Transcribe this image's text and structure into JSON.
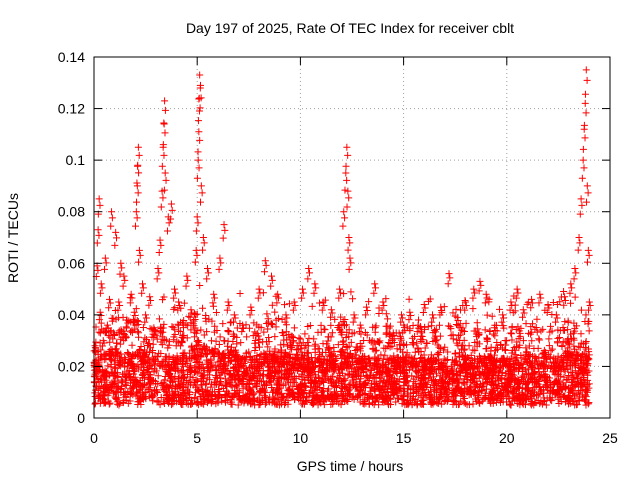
{
  "chart_data": {
    "type": "scatter",
    "title": "Day 197 of 2025, Rate Of TEC Index for receiver cblt",
    "xlabel": "GPS time / hours",
    "ylabel": "ROTI / TECUs",
    "xlim": [
      0,
      25
    ],
    "ylim": [
      0,
      0.14
    ],
    "xticks": [
      0,
      5,
      10,
      15,
      20,
      25
    ],
    "xtick_labels": [
      "0",
      "5",
      "10",
      "15",
      "20",
      "25"
    ],
    "yticks": [
      0,
      0.02,
      0.04,
      0.06,
      0.08,
      0.1,
      0.12,
      0.14
    ],
    "ytick_labels": [
      "0",
      "0.02",
      "0.04",
      "0.06",
      "0.08",
      "0.1",
      "0.12",
      "0.14"
    ],
    "grid": true,
    "marker": "+",
    "colors": {
      "points": "#ff0000",
      "grid": "#a0a0a0",
      "axes": "#000000"
    },
    "series": [
      {
        "name": "ROTI",
        "points": [
          [
            0.05,
            0.028
          ],
          [
            0.15,
            0.059
          ],
          [
            0.2,
            0.073
          ],
          [
            0.25,
            0.085
          ],
          [
            0.3,
            0.041
          ],
          [
            0.35,
            0.052
          ],
          [
            0.45,
            0.03
          ],
          [
            0.55,
            0.062
          ],
          [
            0.65,
            0.036
          ],
          [
            0.75,
            0.046
          ],
          [
            0.85,
            0.08
          ],
          [
            0.95,
            0.033
          ],
          [
            1.05,
            0.072
          ],
          [
            1.2,
            0.045
          ],
          [
            1.3,
            0.06
          ],
          [
            1.45,
            0.055
          ],
          [
            1.6,
            0.038
          ],
          [
            1.8,
            0.048
          ],
          [
            1.95,
            0.041
          ],
          [
            2.05,
            0.08
          ],
          [
            2.1,
            0.09
          ],
          [
            2.12,
            0.098
          ],
          [
            2.15,
            0.105
          ],
          [
            2.2,
            0.065
          ],
          [
            2.35,
            0.052
          ],
          [
            2.5,
            0.04
          ],
          [
            2.7,
            0.047
          ],
          [
            2.9,
            0.035
          ],
          [
            3.1,
            0.058
          ],
          [
            3.2,
            0.069
          ],
          [
            3.3,
            0.088
          ],
          [
            3.35,
            0.105
          ],
          [
            3.4,
            0.114
          ],
          [
            3.42,
            0.123
          ],
          [
            3.45,
            0.095
          ],
          [
            3.6,
            0.078
          ],
          [
            3.75,
            0.083
          ],
          [
            3.9,
            0.05
          ],
          [
            4.1,
            0.045
          ],
          [
            4.3,
            0.032
          ],
          [
            4.5,
            0.055
          ],
          [
            4.7,
            0.042
          ],
          [
            4.95,
            0.065
          ],
          [
            5.0,
            0.078
          ],
          [
            5.05,
            0.1
          ],
          [
            5.08,
            0.111
          ],
          [
            5.1,
            0.124
          ],
          [
            5.12,
            0.133
          ],
          [
            5.15,
            0.128
          ],
          [
            5.2,
            0.09
          ],
          [
            5.3,
            0.07
          ],
          [
            5.5,
            0.058
          ],
          [
            5.8,
            0.048
          ],
          [
            6.1,
            0.062
          ],
          [
            6.3,
            0.075
          ],
          [
            6.5,
            0.045
          ],
          [
            6.8,
            0.04
          ],
          [
            7.2,
            0.036
          ],
          [
            7.6,
            0.043
          ],
          [
            8.0,
            0.05
          ],
          [
            8.3,
            0.061
          ],
          [
            8.6,
            0.055
          ],
          [
            8.9,
            0.048
          ],
          [
            9.3,
            0.04
          ],
          [
            9.7,
            0.045
          ],
          [
            10.1,
            0.05
          ],
          [
            10.4,
            0.058
          ],
          [
            10.7,
            0.052
          ],
          [
            11.1,
            0.045
          ],
          [
            11.5,
            0.042
          ],
          [
            11.9,
            0.05
          ],
          [
            12.1,
            0.08
          ],
          [
            12.2,
            0.095
          ],
          [
            12.25,
            0.105
          ],
          [
            12.3,
            0.088
          ],
          [
            12.35,
            0.07
          ],
          [
            12.4,
            0.062
          ],
          [
            12.6,
            0.04
          ],
          [
            12.9,
            0.036
          ],
          [
            13.2,
            0.043
          ],
          [
            13.6,
            0.052
          ],
          [
            14.0,
            0.045
          ],
          [
            14.5,
            0.033
          ],
          [
            14.9,
            0.04
          ],
          [
            15.3,
            0.041
          ],
          [
            15.7,
            0.036
          ],
          [
            16.0,
            0.044
          ],
          [
            16.4,
            0.04
          ],
          [
            16.8,
            0.043
          ],
          [
            17.2,
            0.056
          ],
          [
            17.6,
            0.039
          ],
          [
            18.0,
            0.045
          ],
          [
            18.4,
            0.05
          ],
          [
            18.7,
            0.053
          ],
          [
            19.0,
            0.048
          ],
          [
            19.4,
            0.035
          ],
          [
            19.8,
            0.04
          ],
          [
            20.2,
            0.045
          ],
          [
            20.5,
            0.05
          ],
          [
            20.8,
            0.042
          ],
          [
            21.2,
            0.046
          ],
          [
            21.6,
            0.048
          ],
          [
            22.0,
            0.044
          ],
          [
            22.4,
            0.04
          ],
          [
            22.8,
            0.047
          ],
          [
            23.1,
            0.052
          ],
          [
            23.3,
            0.058
          ],
          [
            23.5,
            0.07
          ],
          [
            23.6,
            0.085
          ],
          [
            23.7,
            0.1
          ],
          [
            23.75,
            0.112
          ],
          [
            23.8,
            0.122
          ],
          [
            23.85,
            0.135
          ],
          [
            23.9,
            0.09
          ],
          [
            23.95,
            0.065
          ],
          [
            24.0,
            0.045
          ]
        ],
        "baseline_envelope": [
          [
            0,
            0.018
          ],
          [
            1,
            0.022
          ],
          [
            2,
            0.02
          ],
          [
            3,
            0.021
          ],
          [
            4,
            0.018
          ],
          [
            5,
            0.024
          ],
          [
            6,
            0.021
          ],
          [
            7,
            0.019
          ],
          [
            8,
            0.02
          ],
          [
            9,
            0.02
          ],
          [
            10,
            0.018
          ],
          [
            11,
            0.019
          ],
          [
            12,
            0.021
          ],
          [
            13,
            0.019
          ],
          [
            14,
            0.018
          ],
          [
            15,
            0.019
          ],
          [
            16,
            0.018
          ],
          [
            17,
            0.018
          ],
          [
            18,
            0.019
          ],
          [
            19,
            0.019
          ],
          [
            20,
            0.018
          ],
          [
            21,
            0.019
          ],
          [
            22,
            0.019
          ],
          [
            23,
            0.02
          ],
          [
            24,
            0.02
          ]
        ]
      }
    ]
  }
}
